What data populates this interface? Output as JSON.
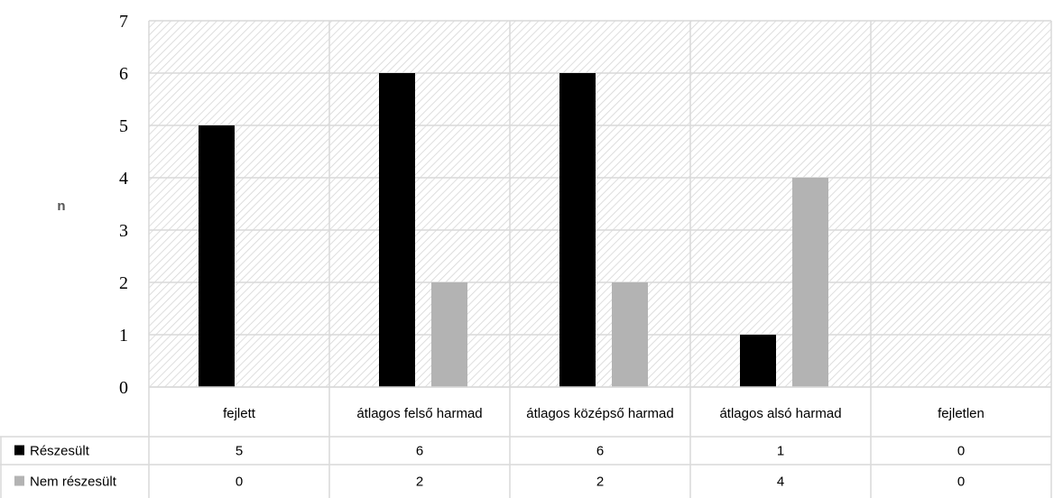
{
  "chart_data": {
    "type": "bar",
    "title": "",
    "xlabel": "",
    "ylabel": "n",
    "ylim": [
      0,
      7
    ],
    "yticks": [
      0,
      1,
      2,
      3,
      4,
      5,
      6,
      7
    ],
    "grid": true,
    "categories": [
      "fejlett",
      "átlagos felső harmad",
      "átlagos középső harmad",
      "átlagos alsó harmad",
      "fejletlen"
    ],
    "series": [
      {
        "name": "Részesült",
        "values": [
          5,
          6,
          6,
          1,
          0
        ],
        "color": "#000000"
      },
      {
        "name": "Nem részesült",
        "values": [
          0,
          2,
          2,
          4,
          0
        ],
        "color": "#b3b3b3"
      }
    ],
    "legend": "data-table"
  }
}
